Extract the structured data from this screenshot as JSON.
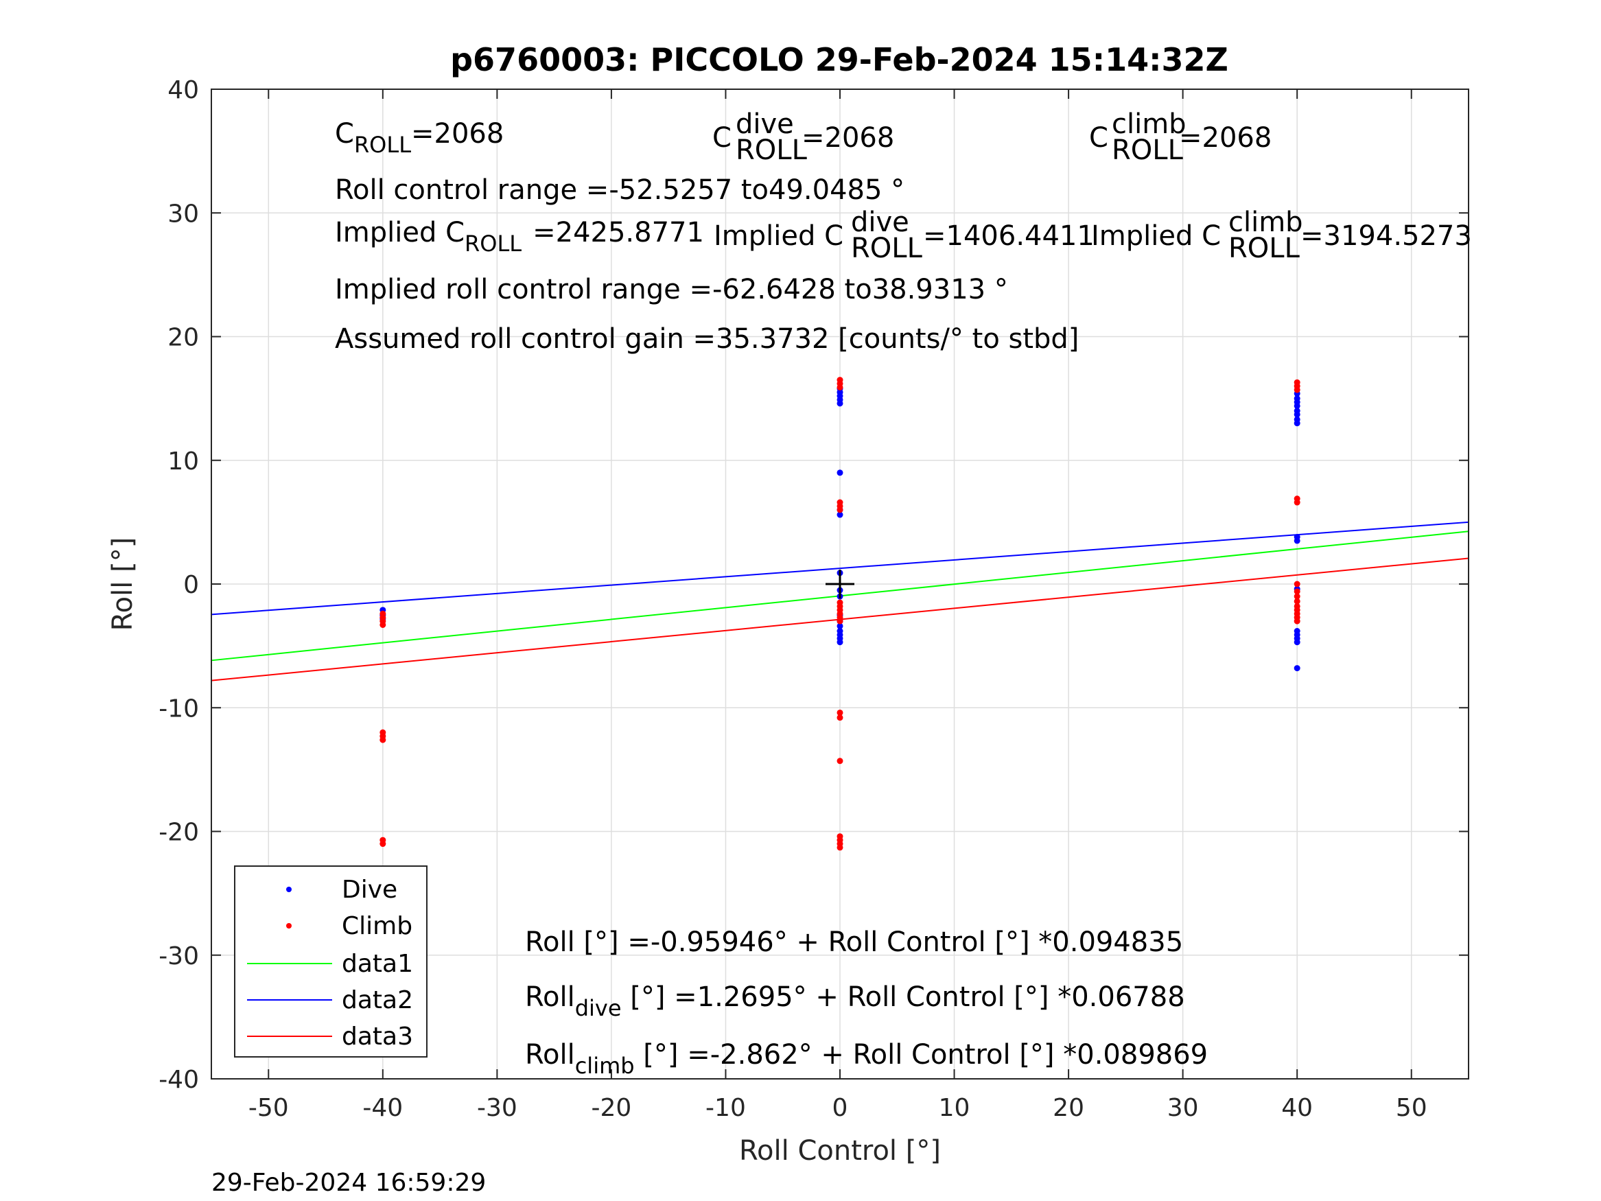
{
  "chart_data": {
    "type": "scatter",
    "title": "p6760003: PICCOLO 29-Feb-2024 15:14:32Z",
    "xlabel": "Roll Control [°]",
    "ylabel": "Roll [°]",
    "xlim": [
      -55,
      55
    ],
    "ylim": [
      -40,
      40
    ],
    "xticks": [
      -50,
      -40,
      -30,
      -20,
      -10,
      0,
      10,
      20,
      30,
      40,
      50
    ],
    "yticks": [
      -40,
      -30,
      -20,
      -10,
      0,
      10,
      20,
      30,
      40
    ],
    "xtick_labels": [
      "-50",
      "-40",
      "-30",
      "-20",
      "-10",
      "0",
      "10",
      "20",
      "30",
      "40",
      "50"
    ],
    "ytick_labels": [
      "-40",
      "-30",
      "-20",
      "-10",
      "0",
      "10",
      "20",
      "30",
      "40"
    ],
    "grid": true,
    "legend_placement": "bottom-left",
    "series": [
      {
        "name": "Dive",
        "kind": "points",
        "color": "#0000ff",
        "points": [
          [
            -40,
            -2.1
          ],
          [
            -40,
            -2.5
          ],
          [
            -40,
            -2.8
          ],
          [
            0,
            15.8
          ],
          [
            0,
            15.5
          ],
          [
            0,
            15.2
          ],
          [
            0,
            14.9
          ],
          [
            0,
            14.6
          ],
          [
            0,
            9.0
          ],
          [
            0,
            6.0
          ],
          [
            0,
            5.6
          ],
          [
            0,
            0.9
          ],
          [
            0,
            -0.5
          ],
          [
            0,
            -1.0
          ],
          [
            0,
            -2.5
          ],
          [
            0,
            -3.0
          ],
          [
            0,
            -3.4
          ],
          [
            0,
            -3.8
          ],
          [
            0,
            -4.1
          ],
          [
            0,
            -4.4
          ],
          [
            0,
            -4.7
          ],
          [
            40,
            15.4
          ],
          [
            40,
            15.0
          ],
          [
            40,
            14.7
          ],
          [
            40,
            14.4
          ],
          [
            40,
            14.0
          ],
          [
            40,
            13.7
          ],
          [
            40,
            13.3
          ],
          [
            40,
            13.0
          ],
          [
            40,
            3.8
          ],
          [
            40,
            3.5
          ],
          [
            40,
            -0.4
          ],
          [
            40,
            -3.8
          ],
          [
            40,
            -4.1
          ],
          [
            40,
            -4.4
          ],
          [
            40,
            -4.7
          ],
          [
            40,
            -6.8
          ]
        ]
      },
      {
        "name": "Climb",
        "kind": "points",
        "color": "#ff0000",
        "points": [
          [
            -40,
            -2.4
          ],
          [
            -40,
            -2.7
          ],
          [
            -40,
            -3.0
          ],
          [
            -40,
            -3.3
          ],
          [
            -40,
            -12.0
          ],
          [
            -40,
            -12.3
          ],
          [
            -40,
            -12.6
          ],
          [
            -40,
            -20.7
          ],
          [
            -40,
            -21.0
          ],
          [
            0,
            16.5
          ],
          [
            0,
            16.2
          ],
          [
            0,
            15.9
          ],
          [
            0,
            6.6
          ],
          [
            0,
            6.3
          ],
          [
            0,
            6.0
          ],
          [
            0,
            -1.5
          ],
          [
            0,
            -1.8
          ],
          [
            0,
            -2.1
          ],
          [
            0,
            -2.4
          ],
          [
            0,
            -2.7
          ],
          [
            0,
            -3.0
          ],
          [
            0,
            -10.4
          ],
          [
            0,
            -10.8
          ],
          [
            0,
            -14.3
          ],
          [
            0,
            -20.4
          ],
          [
            0,
            -20.7
          ],
          [
            0,
            -21.0
          ],
          [
            0,
            -21.3
          ],
          [
            40,
            16.3
          ],
          [
            40,
            16.0
          ],
          [
            40,
            15.7
          ],
          [
            40,
            6.9
          ],
          [
            40,
            6.6
          ],
          [
            40,
            0.0
          ],
          [
            40,
            -0.6
          ],
          [
            40,
            -1.0
          ],
          [
            40,
            -1.4
          ],
          [
            40,
            -1.8
          ],
          [
            40,
            -2.1
          ],
          [
            40,
            -2.4
          ],
          [
            40,
            -2.7
          ],
          [
            40,
            -3.0
          ]
        ]
      },
      {
        "name": "data1",
        "kind": "line",
        "color": "#00ff00",
        "intercept": -0.95946,
        "slope": 0.094835
      },
      {
        "name": "data2",
        "kind": "line",
        "color": "#0000ff",
        "intercept": 1.2695,
        "slope": 0.06788
      },
      {
        "name": "data3",
        "kind": "line",
        "color": "#ff0000",
        "intercept": -2.862,
        "slope": 0.089869
      }
    ],
    "marker": {
      "x": 0,
      "y": 0,
      "symbol": "+",
      "color": "#000000"
    },
    "annotations": {
      "c_roll": {
        "base": "C",
        "sub": "ROLL",
        "value": "=2068"
      },
      "c_roll_dive": {
        "base": "C",
        "sup": "dive",
        "sub": "ROLL",
        "value": "=2068"
      },
      "c_roll_climb": {
        "base": "C",
        "sup": "climb",
        "sub": "ROLL",
        "value": "=2068"
      },
      "roll_control_range": "Roll control range =-52.5257 to49.0485 °",
      "implied_c_roll": {
        "prefix": "Implied C",
        "sub": "ROLL",
        "value": "=2425.8771"
      },
      "implied_c_roll_dive": {
        "prefix": "Implied C",
        "sup": "dive",
        "sub": "ROLL",
        "value": "=1406.4411"
      },
      "implied_c_roll_climb": {
        "prefix": "Implied C",
        "sup": "climb",
        "sub": "ROLL",
        "value": "=3194.5273"
      },
      "implied_range": "Implied roll control range =-62.6428 to38.9313 °",
      "gain": "Assumed roll control gain =35.3732 [counts/° to stbd]",
      "fit_all": "Roll [°] =-0.95946° + Roll Control [°] *0.094835",
      "fit_dive": {
        "base": "Roll",
        "sub": "dive",
        "rest": " [°] =1.2695° + Roll Control [°] *0.06788"
      },
      "fit_climb": {
        "base": "Roll",
        "sub": "climb",
        "rest": " [°] =-2.862° + Roll Control [°] *0.089869"
      }
    },
    "timestamp": "29-Feb-2024 16:59:29"
  }
}
